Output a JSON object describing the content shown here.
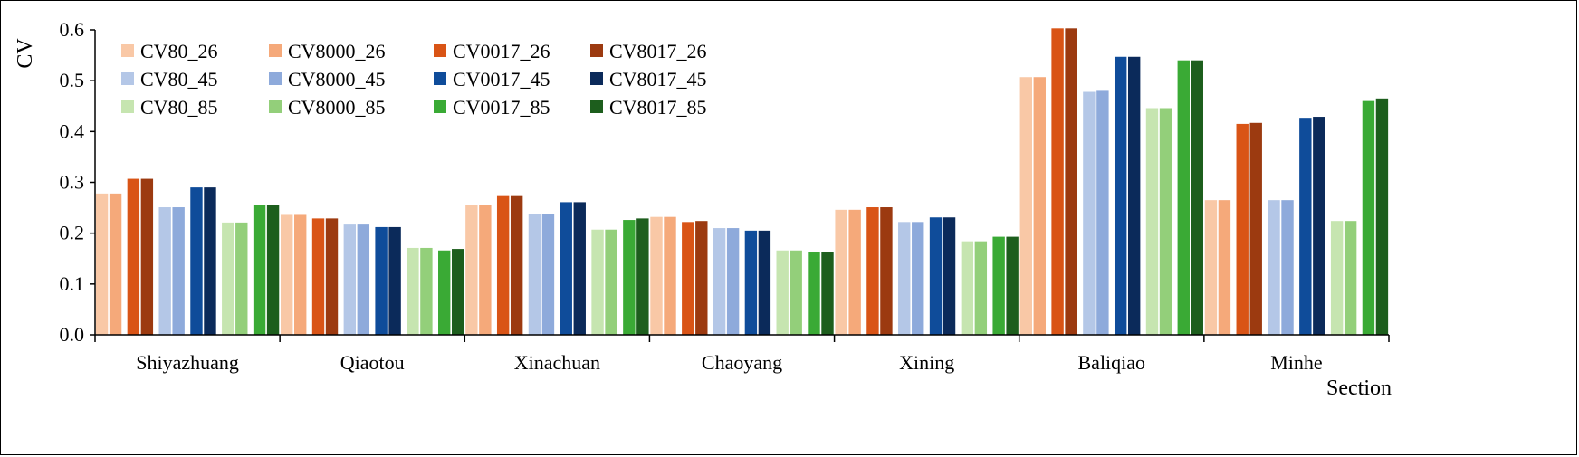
{
  "chart_data": {
    "type": "bar",
    "title": "",
    "xlabel": "Section",
    "ylabel": "CV",
    "ylim": [
      0,
      0.6
    ],
    "yticks": [
      "0.0",
      "0.1",
      "0.2",
      "0.3",
      "0.4",
      "0.5",
      "0.6"
    ],
    "grid": false,
    "legend_position": "top-left",
    "categories": [
      "Shiyazhuang",
      "Qiaotou",
      "Xinachuan",
      "Chaoyang",
      "Xining",
      "Baliqiao",
      "Minhe"
    ],
    "series": [
      {
        "name": "CV80_26",
        "color": "#f9c8a6",
        "values": [
          0.278,
          0.236,
          0.256,
          0.232,
          0.246,
          0.507,
          0.265
        ]
      },
      {
        "name": "CV8000_26",
        "color": "#f5a97a",
        "values": [
          0.278,
          0.236,
          0.256,
          0.232,
          0.246,
          0.507,
          0.265
        ]
      },
      {
        "name": "CV0017_26",
        "color": "#d95416",
        "values": [
          0.307,
          0.229,
          0.273,
          0.222,
          0.251,
          0.603,
          0.415
        ]
      },
      {
        "name": "CV8017_26",
        "color": "#9c3a10",
        "values": [
          0.307,
          0.229,
          0.273,
          0.224,
          0.251,
          0.603,
          0.417
        ]
      },
      {
        "name": "CV80_45",
        "color": "#b4c7e7",
        "values": [
          0.251,
          0.217,
          0.237,
          0.21,
          0.222,
          0.478,
          0.265
        ]
      },
      {
        "name": "CV8000_45",
        "color": "#8eaadb",
        "values": [
          0.251,
          0.217,
          0.237,
          0.21,
          0.222,
          0.48,
          0.265
        ]
      },
      {
        "name": "CV0017_45",
        "color": "#0f4c9a",
        "values": [
          0.29,
          0.212,
          0.261,
          0.205,
          0.231,
          0.547,
          0.427
        ]
      },
      {
        "name": "CV8017_45",
        "color": "#0b2a5a",
        "values": [
          0.29,
          0.212,
          0.261,
          0.205,
          0.231,
          0.547,
          0.429
        ]
      },
      {
        "name": "CV80_85",
        "color": "#c6e5b0",
        "values": [
          0.221,
          0.171,
          0.207,
          0.166,
          0.184,
          0.446,
          0.224
        ]
      },
      {
        "name": "CV8000_85",
        "color": "#93cf7a",
        "values": [
          0.221,
          0.171,
          0.207,
          0.166,
          0.184,
          0.446,
          0.224
        ]
      },
      {
        "name": "CV0017_85",
        "color": "#3aaa35",
        "values": [
          0.256,
          0.166,
          0.226,
          0.162,
          0.193,
          0.54,
          0.46
        ]
      },
      {
        "name": "CV8017_85",
        "color": "#1d5e1d",
        "values": [
          0.256,
          0.169,
          0.229,
          0.162,
          0.193,
          0.54,
          0.465
        ]
      }
    ]
  }
}
